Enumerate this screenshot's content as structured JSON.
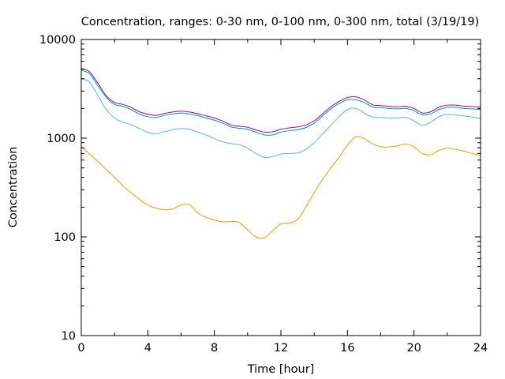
{
  "chart_data": {
    "type": "line",
    "title": "Concentration, ranges: 0-30 nm, 0-100 nm, 0-300 nm, total (3/19/19)",
    "xlabel": "Time [hour]",
    "ylabel": "Concentration",
    "xlim": [
      0,
      24
    ],
    "ylim": [
      10,
      10000
    ],
    "yscale": "log",
    "grid": false,
    "legend": "none",
    "x_ticks": [
      0,
      4,
      8,
      12,
      16,
      20,
      24
    ],
    "x_tick_labels": [
      "0",
      "4",
      "8",
      "12",
      "16",
      "20",
      "24"
    ],
    "y_ticks": [
      10,
      100,
      1000,
      10000
    ],
    "y_tick_labels": [
      "10",
      "100",
      "1000",
      "10000"
    ],
    "x": [
      0,
      0.5,
      1,
      1.5,
      2,
      2.5,
      3,
      3.5,
      4,
      4.5,
      5,
      5.5,
      6,
      6.5,
      7,
      7.5,
      8,
      8.5,
      9,
      9.5,
      10,
      10.5,
      11,
      11.5,
      12,
      12.5,
      13,
      13.5,
      14,
      14.5,
      15,
      15.5,
      16,
      16.5,
      17,
      17.5,
      18,
      18.5,
      19,
      19.5,
      20,
      20.5,
      21,
      21.5,
      22,
      22.5,
      23,
      23.5,
      24
    ],
    "series": [
      {
        "color": "#e69f00",
        "values": [
          820,
          690,
          580,
          480,
          400,
          330,
          280,
          240,
          210,
          195,
          188,
          192,
          210,
          212,
          175,
          158,
          148,
          142,
          143,
          140,
          118,
          100,
          98,
          115,
          135,
          138,
          150,
          200,
          280,
          380,
          500,
          640,
          850,
          1030,
          990,
          880,
          820,
          815,
          835,
          870,
          820,
          700,
          680,
          750,
          790,
          770,
          740,
          700,
          670
        ]
      },
      {
        "color": "#56b4e9",
        "values": [
          4000,
          3700,
          2700,
          1950,
          1600,
          1450,
          1370,
          1250,
          1150,
          1110,
          1160,
          1220,
          1250,
          1230,
          1150,
          1080,
          990,
          920,
          880,
          860,
          790,
          700,
          640,
          650,
          690,
          700,
          710,
          770,
          900,
          1100,
          1350,
          1650,
          1950,
          2000,
          1800,
          1640,
          1620,
          1590,
          1610,
          1620,
          1500,
          1350,
          1450,
          1650,
          1740,
          1720,
          1680,
          1640,
          1580
        ]
      },
      {
        "color": "#009e73",
        "values": [
          4900,
          4500,
          3400,
          2600,
          2200,
          2100,
          1950,
          1750,
          1650,
          1620,
          1700,
          1760,
          1800,
          1760,
          1690,
          1600,
          1520,
          1420,
          1300,
          1260,
          1230,
          1150,
          1080,
          1080,
          1150,
          1190,
          1220,
          1280,
          1420,
          1680,
          1980,
          2250,
          2450,
          2450,
          2300,
          2080,
          2040,
          2000,
          1980,
          2000,
          1900,
          1720,
          1760,
          1950,
          2050,
          2050,
          2000,
          1980,
          1950
        ]
      },
      {
        "color": "#9400d3",
        "values": [
          5100,
          4700,
          3600,
          2700,
          2300,
          2200,
          2050,
          1850,
          1750,
          1700,
          1780,
          1840,
          1880,
          1840,
          1770,
          1680,
          1600,
          1490,
          1360,
          1320,
          1290,
          1210,
          1150,
          1160,
          1230,
          1270,
          1300,
          1360,
          1500,
          1760,
          2080,
          2360,
          2580,
          2620,
          2450,
          2180,
          2140,
          2100,
          2080,
          2100,
          2000,
          1800,
          1850,
          2060,
          2160,
          2160,
          2110,
          2090,
          2060
        ]
      }
    ]
  }
}
